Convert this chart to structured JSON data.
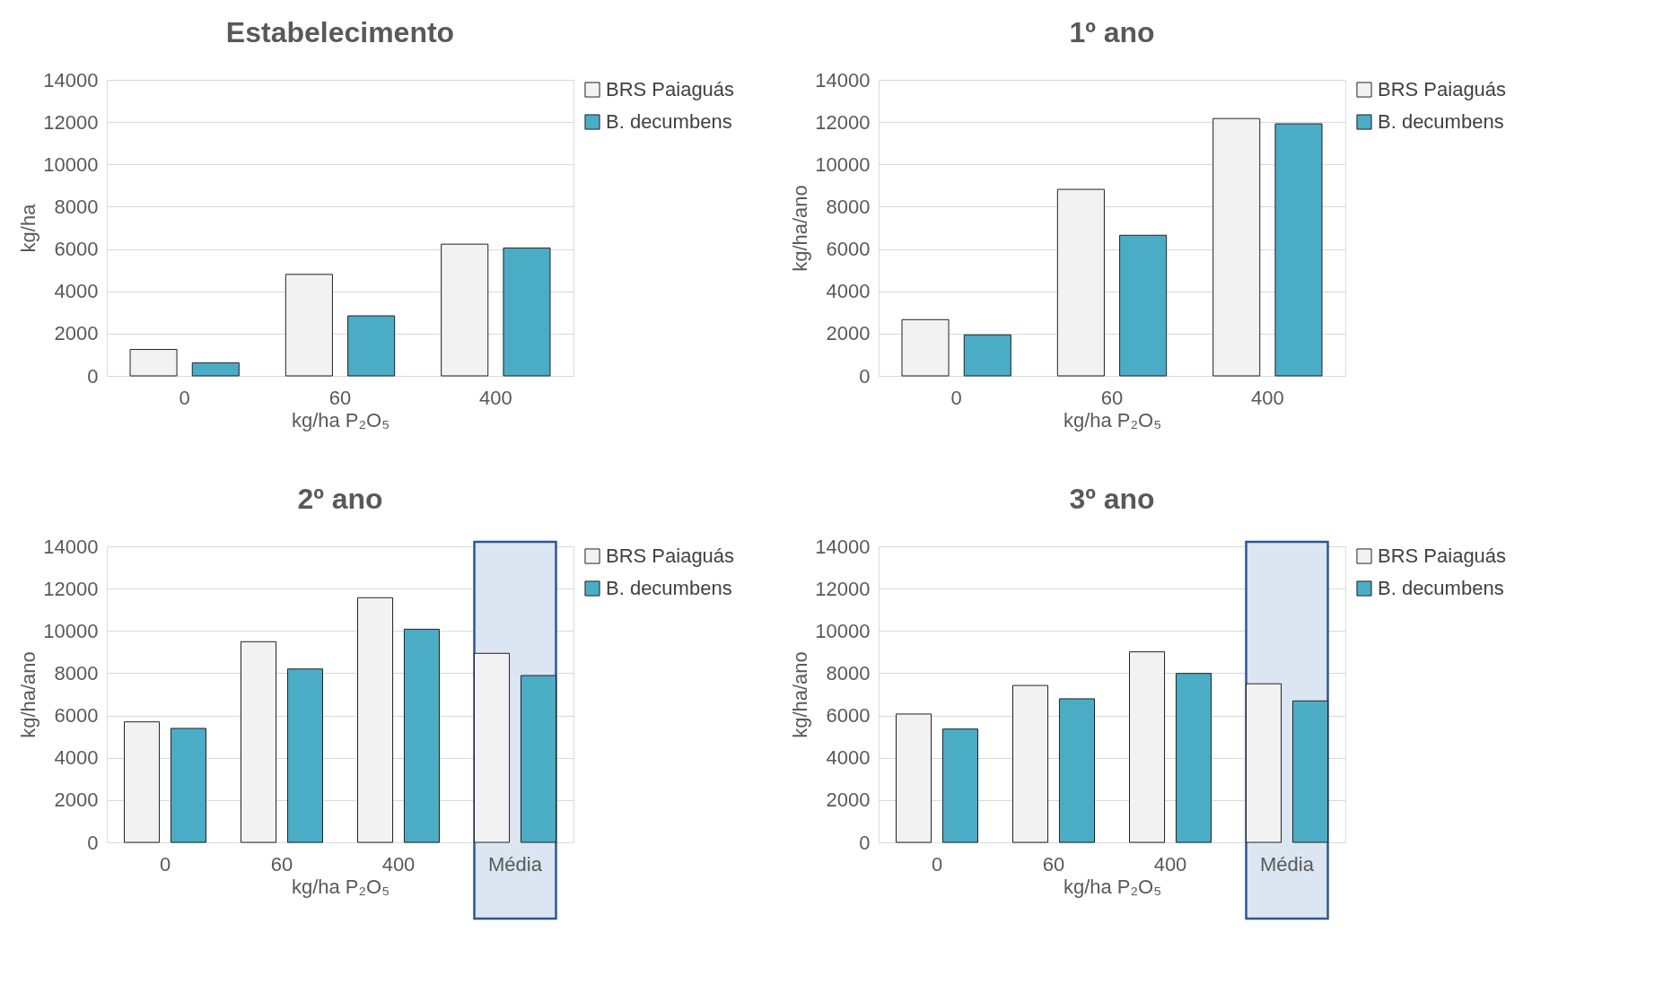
{
  "chart_data": [
    {
      "type": "bar",
      "title": "Estabelecimento",
      "xlabel": "kg/ha P₂O₅",
      "ylabel": "kg/ha",
      "categories": [
        "0",
        "60",
        "400"
      ],
      "ylim": [
        0,
        14000
      ],
      "yticks": [
        0,
        2000,
        4000,
        6000,
        8000,
        10000,
        12000,
        14000
      ],
      "grid": "y",
      "legend": "right",
      "series": [
        {
          "name": "BRS Paiaguás",
          "color": "#f2f2f2",
          "values": [
            1250,
            4800,
            6230
          ]
        },
        {
          "name": "B. decumbens",
          "color": "#4bacc6",
          "values": [
            620,
            2840,
            6050
          ]
        }
      ]
    },
    {
      "type": "bar",
      "title": "1º ano",
      "xlabel": "kg/ha P₂O₅",
      "ylabel": "kg/ha/ano",
      "categories": [
        "0",
        "60",
        "400"
      ],
      "ylim": [
        0,
        14000
      ],
      "yticks": [
        0,
        2000,
        4000,
        6000,
        8000,
        10000,
        12000,
        14000
      ],
      "grid": "y",
      "legend": "right",
      "series": [
        {
          "name": "BRS Paiaguás",
          "color": "#f2f2f2",
          "values": [
            2660,
            8820,
            12170
          ]
        },
        {
          "name": "B. decumbens",
          "color": "#4bacc6",
          "values": [
            1940,
            6650,
            11920
          ]
        }
      ]
    },
    {
      "type": "bar",
      "title": "2º ano",
      "xlabel": "kg/ha P₂O₅",
      "ylabel": "kg/ha/ano",
      "categories": [
        "0",
        "60",
        "400",
        "Média"
      ],
      "ylim": [
        0,
        14000
      ],
      "yticks": [
        0,
        2000,
        4000,
        6000,
        8000,
        10000,
        12000,
        14000
      ],
      "grid": "y",
      "legend": "right",
      "bands": [
        {
          "axis": "x",
          "from": "Média",
          "to": "Média",
          "color": "#dce6f2"
        }
      ],
      "series": [
        {
          "name": "BRS Paiaguás",
          "color": "#f2f2f2",
          "values": [
            5700,
            9490,
            11570,
            8940
          ]
        },
        {
          "name": "B. decumbens",
          "color": "#4bacc6",
          "values": [
            5390,
            8200,
            10080,
            7890
          ]
        }
      ]
    },
    {
      "type": "bar",
      "title": "3º ano",
      "xlabel": "kg/ha P₂O₅",
      "ylabel": "kg/ha/ano",
      "categories": [
        "0",
        "60",
        "400",
        "Média"
      ],
      "ylim": [
        0,
        14000
      ],
      "yticks": [
        0,
        2000,
        4000,
        6000,
        8000,
        10000,
        12000,
        14000
      ],
      "grid": "y",
      "legend": "right",
      "bands": [
        {
          "axis": "x",
          "from": "Média",
          "to": "Média",
          "color": "#dce6f2"
        }
      ],
      "series": [
        {
          "name": "BRS Paiaguás",
          "color": "#f2f2f2",
          "values": [
            6070,
            7420,
            9010,
            7500
          ]
        },
        {
          "name": "B. decumbens",
          "color": "#4bacc6",
          "values": [
            5360,
            6790,
            7990,
            6690
          ]
        }
      ]
    }
  ]
}
